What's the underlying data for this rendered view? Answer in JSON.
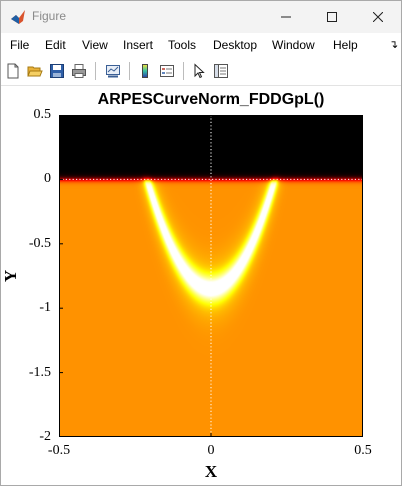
{
  "window": {
    "title": "Figure",
    "controls": [
      "minimize",
      "maximize",
      "close"
    ]
  },
  "menu": {
    "items": [
      "File",
      "Edit",
      "View",
      "Insert",
      "Tools",
      "Desktop",
      "Window",
      "Help"
    ]
  },
  "toolbar": {
    "buttons": [
      "new-figure-icon",
      "open-file-icon",
      "save-icon",
      "print-icon",
      "link-plot-icon",
      "insert-colorbar-icon",
      "insert-legend-icon",
      "edit-plot-pointer-icon",
      "property-inspector-icon"
    ]
  },
  "chart_data": {
    "type": "heatmap",
    "title": "ARPESCurveNorm_FDDGpL()",
    "xlabel": "X",
    "ylabel": "Y",
    "xlim": [
      -0.5,
      0.5
    ],
    "ylim": [
      -2,
      0.5
    ],
    "xticks": [
      "-0.5",
      "0",
      "0.5"
    ],
    "yticks": [
      "0.5",
      "0",
      "-0.5",
      "-1",
      "-1.5",
      "-2"
    ],
    "colormap": "hot",
    "reference_lines": {
      "x": 0,
      "y": 0,
      "style": "dotted",
      "color": "#ffffff"
    },
    "band": {
      "shape": "parabola",
      "min_y": -0.85,
      "vertex_x": 0,
      "x_extent_at_top": 0.21
    },
    "colors": {
      "above_fermi": "#000000",
      "background": "#e00000",
      "band_core": "#ffffff"
    }
  }
}
